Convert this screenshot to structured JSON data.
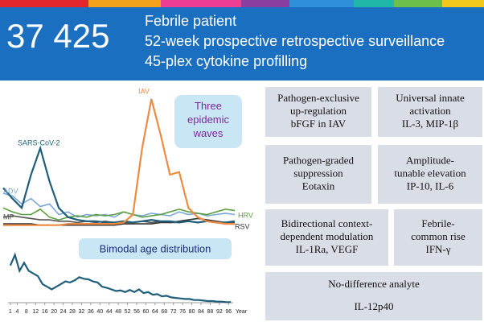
{
  "header": {
    "count": "37 425",
    "lines": [
      "Febrile patient",
      "52-week prospective retrospective surveillance",
      "45-plex cytokine profilling"
    ]
  },
  "chart_data": [
    {
      "type": "line",
      "annotation": "Three epidemic waves",
      "ylim": [
        0,
        100
      ],
      "series": [
        {
          "name": "SARS-CoV-2",
          "color": "#1f5e7a",
          "values": [
            30,
            22,
            15,
            40,
            60,
            35,
            15,
            8,
            6,
            5,
            5,
            4,
            4,
            5,
            4,
            5,
            6,
            5,
            5,
            4,
            5,
            4,
            5,
            4,
            4,
            5
          ]
        },
        {
          "name": "IAV",
          "color": "#ee8a42",
          "values": [
            2,
            2,
            2,
            2,
            2,
            2,
            2,
            3,
            3,
            3,
            3,
            3,
            3,
            4,
            10,
            60,
            97,
            70,
            40,
            42,
            15,
            8,
            5,
            4,
            3,
            3
          ]
        },
        {
          "name": "ADV",
          "color": "#7aa7d6",
          "values": [
            26,
            24,
            18,
            22,
            16,
            18,
            10,
            12,
            8,
            10,
            9,
            10,
            8,
            12,
            10,
            9,
            11,
            10,
            9,
            12,
            10,
            11,
            9,
            10,
            11,
            10
          ]
        },
        {
          "name": "MP",
          "color": "#555555",
          "values": [
            8,
            9,
            8,
            7,
            6,
            6,
            5,
            5,
            4,
            5,
            4,
            5,
            4,
            4,
            4,
            5,
            4,
            5,
            4,
            4,
            5,
            4,
            5,
            4,
            4,
            4
          ]
        },
        {
          "name": "HRV",
          "color": "#5aa040",
          "values": [
            15,
            12,
            10,
            10,
            14,
            8,
            6,
            8,
            9,
            8,
            10,
            9,
            10,
            12,
            10,
            8,
            9,
            10,
            12,
            14,
            12,
            11,
            10,
            12,
            14,
            13
          ]
        },
        {
          "name": "RSV",
          "color": "#333333",
          "values": [
            3,
            3,
            3,
            3,
            2,
            2,
            2,
            2,
            2,
            2,
            2,
            2,
            2,
            3,
            3,
            3,
            3,
            4,
            4,
            5,
            6,
            7,
            6,
            5,
            4,
            3
          ]
        }
      ]
    },
    {
      "type": "line",
      "annotation": "Bimodal age distribution",
      "x_label": "Year",
      "color": "#1f5e7a",
      "x": [
        1,
        3,
        5,
        7,
        9,
        11,
        13,
        15,
        17,
        19,
        21,
        23,
        25,
        27,
        29,
        31,
        33,
        35,
        37,
        39,
        41,
        43,
        45,
        47,
        49,
        51,
        53,
        55,
        57,
        59,
        61,
        63,
        65,
        67,
        69,
        71,
        73,
        75,
        77,
        79,
        81,
        83,
        85,
        87,
        89,
        91,
        93,
        95,
        97
      ],
      "values": [
        70,
        90,
        60,
        75,
        60,
        55,
        50,
        35,
        30,
        25,
        30,
        35,
        40,
        38,
        42,
        48,
        45,
        44,
        40,
        38,
        30,
        28,
        25,
        22,
        23,
        20,
        24,
        20,
        25,
        18,
        20,
        15,
        16,
        12,
        13,
        10,
        9,
        8,
        7,
        7,
        5,
        5,
        4,
        3,
        3,
        2,
        2,
        1,
        1
      ],
      "xlim": [
        0,
        98
      ],
      "ylim": [
        0,
        100
      ],
      "xticks": [
        1,
        4,
        8,
        12,
        16,
        20,
        24,
        28,
        32,
        36,
        40,
        44,
        48,
        52,
        56,
        60,
        64,
        68,
        72,
        76,
        80,
        84,
        88,
        92,
        96
      ]
    }
  ],
  "boxes": [
    {
      "lines": [
        "Pathogen-exclusive",
        "up-regulation",
        "bFGF in IAV"
      ]
    },
    {
      "lines": [
        "Universal innate",
        "activation",
        "IL-3, MIP-1β"
      ]
    },
    {
      "lines": [
        "Pathogen-graded",
        "suppression",
        "Eotaxin"
      ]
    },
    {
      "lines": [
        "Amplitude-",
        "tunable elevation",
        "IP-10, IL-6"
      ]
    },
    {
      "lines": [
        "Bidirectional context-",
        "dependent modulation",
        "IL-1Ra, VEGF"
      ]
    },
    {
      "lines": [
        "Febrile-",
        "common rise",
        "IFN-γ"
      ]
    },
    {
      "lines": [
        "No-difference analyte",
        "IL-12p40"
      ]
    }
  ]
}
